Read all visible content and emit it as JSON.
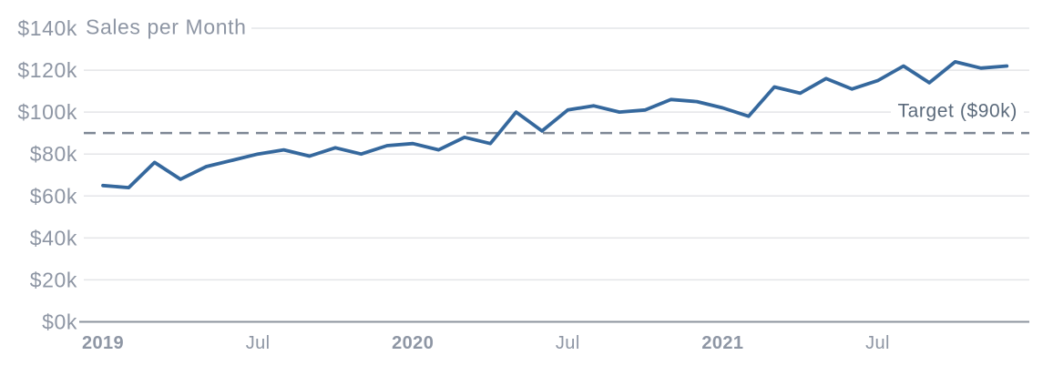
{
  "colors": {
    "background": "#ffffff",
    "series_line": "#35689d",
    "target_line": "#7e8795",
    "gridline": "#e4e5e8",
    "axis_line": "#8d949e",
    "axis_label": "#8e96a4",
    "target_label_text": "#5b6a7b"
  },
  "chart_data": {
    "type": "line",
    "title": "Sales per Month",
    "y_unit": "thousand USD",
    "x": [
      "Jan 2019",
      "Feb 2019",
      "Mar 2019",
      "Apr 2019",
      "May 2019",
      "Jun 2019",
      "Jul 2019",
      "Aug 2019",
      "Sep 2019",
      "Oct 2019",
      "Nov 2019",
      "Dec 2019",
      "Jan 2020",
      "Feb 2020",
      "Mar 2020",
      "Apr 2020",
      "May 2020",
      "Jun 2020",
      "Jul 2020",
      "Aug 2020",
      "Sep 2020",
      "Oct 2020",
      "Nov 2020",
      "Dec 2020",
      "Jan 2021",
      "Feb 2021",
      "Mar 2021",
      "Apr 2021",
      "May 2021",
      "Jun 2021",
      "Jul 2021",
      "Aug 2021",
      "Sep 2021",
      "Oct 2021",
      "Nov 2021",
      "Dec 2021"
    ],
    "series": [
      {
        "name": "Sales per Month",
        "values": [
          65,
          64,
          76,
          68,
          74,
          77,
          80,
          82,
          79,
          83,
          80,
          84,
          85,
          82,
          88,
          85,
          100,
          91,
          101,
          103,
          100,
          101,
          106,
          105,
          102,
          98,
          112,
          109,
          116,
          111,
          115,
          122,
          114,
          124,
          121,
          122
        ]
      }
    ],
    "target_line": {
      "label": "Target ($90k)",
      "value": 90,
      "style": "dashed"
    },
    "y_axis": {
      "range": [
        0,
        140
      ],
      "ticks": [
        0,
        20,
        40,
        60,
        80,
        100,
        120,
        140
      ],
      "tick_labels": [
        "$0k",
        "$20k",
        "$40k",
        "$60k",
        "$80k",
        "$100k",
        "$120k",
        "$140k"
      ]
    },
    "x_axis": {
      "tick_month_indices": [
        0,
        6,
        12,
        18,
        24,
        30
      ],
      "tick_labels": [
        "2019",
        "Jul",
        "2020",
        "Jul",
        "2021",
        "Jul"
      ],
      "tick_bold": [
        true,
        false,
        true,
        false,
        true,
        false
      ]
    },
    "grid": true,
    "legend": "none"
  }
}
